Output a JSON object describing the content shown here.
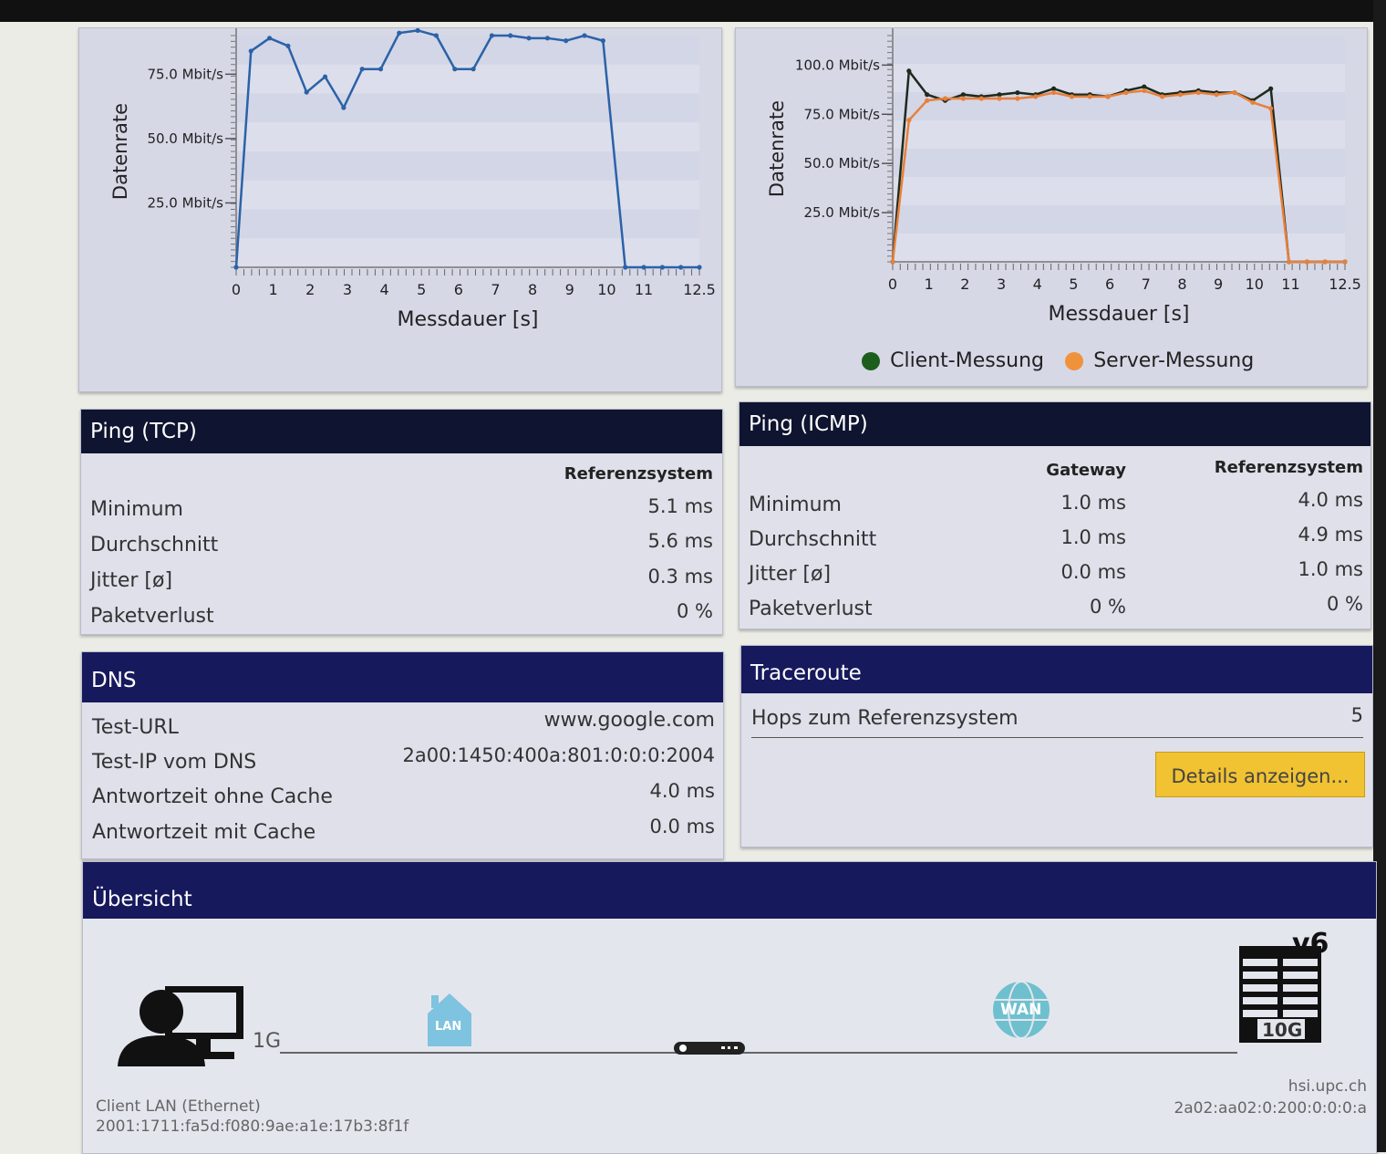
{
  "chart_data": [
    {
      "type": "line",
      "title": "",
      "xlabel": "Messdauer [s]",
      "ylabel": "Datenrate",
      "xlim": [
        0,
        12.5
      ],
      "ylim": [
        0,
        90
      ],
      "x_ticks": [
        "0",
        "1",
        "2",
        "3",
        "4",
        "5",
        "6",
        "7",
        "8",
        "9",
        "10",
        "11",
        "12.5"
      ],
      "y_ticks": [
        "25.0 Mbit/s",
        "50.0 Mbit/s",
        "75.0 Mbit/s"
      ],
      "series": [
        {
          "color": "#2b62a8",
          "x": [
            0,
            0.4,
            0.9,
            1.4,
            1.9,
            2.4,
            2.9,
            3.4,
            3.9,
            4.4,
            4.9,
            5.4,
            5.9,
            6.4,
            6.9,
            7.4,
            7.9,
            8.4,
            8.9,
            9.4,
            9.9,
            10.5,
            11.0,
            11.5,
            12.0,
            12.5
          ],
          "y": [
            0,
            84,
            89,
            86,
            68,
            74,
            62,
            77,
            77,
            91,
            92,
            90,
            77,
            77,
            90,
            90,
            89,
            89,
            88,
            90,
            88,
            0,
            0,
            0,
            0,
            0
          ]
        }
      ]
    },
    {
      "type": "line",
      "title": "",
      "xlabel": "Messdauer [s]",
      "ylabel": "Datenrate",
      "xlim": [
        0,
        12.5
      ],
      "ylim": [
        0,
        115
      ],
      "x_ticks": [
        "0",
        "1",
        "2",
        "3",
        "4",
        "5",
        "6",
        "7",
        "8",
        "9",
        "10",
        "11",
        "12.5"
      ],
      "y_ticks": [
        "25.0 Mbit/s",
        "50.0 Mbit/s",
        "75.0 Mbit/s",
        "100.0 Mbit/s"
      ],
      "series": [
        {
          "name": "Client-Messung",
          "color": "#1d2a1d",
          "x": [
            0,
            0.45,
            0.95,
            1.45,
            1.95,
            2.45,
            2.95,
            3.45,
            3.95,
            4.45,
            4.95,
            5.45,
            5.95,
            6.45,
            6.95,
            7.45,
            7.95,
            8.45,
            8.95,
            9.45,
            9.95,
            10.45,
            10.95,
            11.45,
            11.95,
            12.5
          ],
          "y": [
            0,
            97,
            85,
            82,
            85,
            84,
            85,
            86,
            85,
            88,
            85,
            85,
            84,
            87,
            89,
            85,
            86,
            87,
            86,
            86,
            82,
            88,
            0,
            0,
            0,
            0
          ]
        },
        {
          "name": "Server-Messung",
          "color": "#e8803a",
          "x": [
            0,
            0.45,
            0.95,
            1.45,
            1.95,
            2.45,
            2.95,
            3.45,
            3.95,
            4.45,
            4.95,
            5.45,
            5.95,
            6.45,
            6.95,
            7.45,
            7.95,
            8.45,
            8.95,
            9.45,
            9.95,
            10.45,
            10.95,
            11.45,
            11.95,
            12.5
          ],
          "y": [
            0,
            72,
            82,
            83,
            83,
            83,
            83,
            83,
            84,
            86,
            84,
            84,
            84,
            86,
            87,
            84,
            85,
            86,
            85,
            86,
            81,
            78,
            0,
            0,
            0,
            0
          ]
        }
      ],
      "legend_position": "bottom"
    }
  ],
  "legend": [
    {
      "label": "Client-Messung",
      "color": "#1d5e1d"
    },
    {
      "label": "Server-Messung",
      "color": "#f0923a"
    }
  ],
  "ping_tcp": {
    "title": "Ping (TCP)",
    "col": "Referenzsystem",
    "rows": [
      {
        "label": "Minimum",
        "value": "5.1 ms"
      },
      {
        "label": "Durchschnitt",
        "value": "5.6 ms"
      },
      {
        "label": "Jitter [ø]",
        "value": "0.3 ms"
      },
      {
        "label": "Paketverlust",
        "value": "0 %"
      }
    ]
  },
  "ping_icmp": {
    "title": "Ping (ICMP)",
    "col_gateway": "Gateway",
    "col_ref": "Referenzsystem",
    "rows": [
      {
        "label": "Minimum",
        "gateway": "1.0 ms",
        "ref": "4.0 ms"
      },
      {
        "label": "Durchschnitt",
        "gateway": "1.0 ms",
        "ref": "4.9 ms"
      },
      {
        "label": "Jitter [ø]",
        "gateway": "0.0 ms",
        "ref": "1.0 ms"
      },
      {
        "label": "Paketverlust",
        "gateway": "0 %",
        "ref": "0 %"
      }
    ]
  },
  "dns": {
    "title": "DNS",
    "rows": [
      {
        "label": "Test-URL",
        "value": "www.google.com"
      },
      {
        "label": "Test-IP vom DNS",
        "value": "2a00:1450:400a:801:0:0:0:2004"
      },
      {
        "label": "Antwortzeit ohne Cache",
        "value": "4.0 ms"
      },
      {
        "label": "Antwortzeit mit Cache",
        "value": "0.0 ms"
      }
    ]
  },
  "traceroute": {
    "title": "Traceroute",
    "hops_label": "Hops zum Referenzsystem",
    "hops_value": "5",
    "details_button": "Details anzeigen..."
  },
  "overview": {
    "title": "Übersicht",
    "client_speed": "1G",
    "lan_label": "LAN",
    "wan_label": "WAN",
    "server_speed": "10G",
    "ip_version": "v6",
    "client_name": "Client LAN (Ethernet)",
    "client_ip": "2001:1711:fa5d:f080:9ae:a1e:17b3:8f1f",
    "server_host": "hsi.upc.ch",
    "server_ip": "2a02:aa02:0:200:0:0:0:a"
  }
}
